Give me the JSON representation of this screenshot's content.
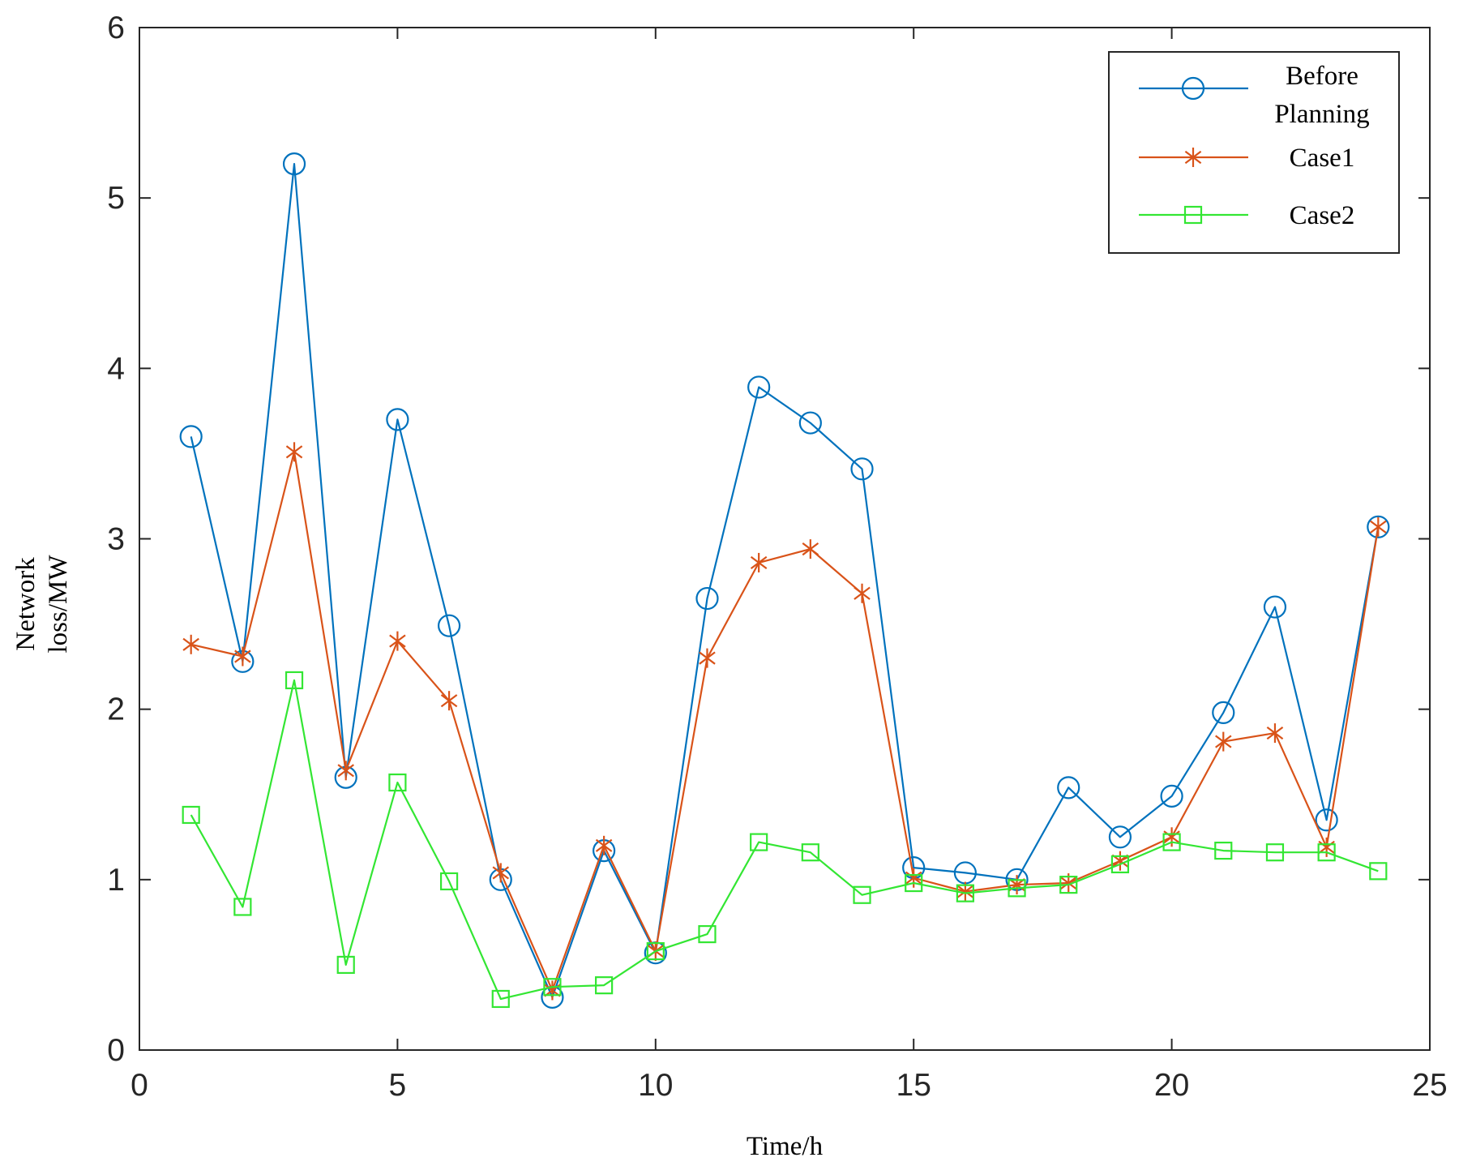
{
  "chart_data": {
    "type": "line",
    "title": "",
    "xlabel": "Time/h",
    "ylabel_lines": [
      "Network",
      "loss/MW"
    ],
    "xlim": [
      0,
      25
    ],
    "ylim": [
      0,
      6
    ],
    "xticks": [
      0,
      5,
      10,
      15,
      20,
      25
    ],
    "yticks": [
      0,
      1,
      2,
      3,
      4,
      5,
      6
    ],
    "grid": false,
    "legend_position": "top-right",
    "x": [
      1,
      2,
      3,
      4,
      5,
      6,
      7,
      8,
      9,
      10,
      11,
      12,
      13,
      14,
      15,
      16,
      17,
      18,
      19,
      20,
      21,
      22,
      23,
      24
    ],
    "series": [
      {
        "name": "Before Planning",
        "legend_lines": [
          "Before",
          "Planning"
        ],
        "color": "#0072BD",
        "marker": "circle",
        "values": [
          3.6,
          2.28,
          5.2,
          1.6,
          3.7,
          2.49,
          1.0,
          0.31,
          1.17,
          0.57,
          2.65,
          3.89,
          3.68,
          3.41,
          1.07,
          1.04,
          1.0,
          1.54,
          1.25,
          1.49,
          1.98,
          2.6,
          1.35,
          3.07
        ]
      },
      {
        "name": "Case1",
        "legend_lines": [
          "Case1"
        ],
        "color": "#D95319",
        "marker": "asterisk",
        "values": [
          2.38,
          2.31,
          3.51,
          1.64,
          2.4,
          2.05,
          1.04,
          0.35,
          1.2,
          0.58,
          2.3,
          2.86,
          2.94,
          2.68,
          1.01,
          0.93,
          0.97,
          0.98,
          1.11,
          1.25,
          1.81,
          1.86,
          1.19,
          3.07
        ]
      },
      {
        "name": "Case2",
        "legend_lines": [
          "Case2"
        ],
        "color": "#33E633",
        "marker": "square",
        "values": [
          1.38,
          0.84,
          2.17,
          0.5,
          1.57,
          0.99,
          0.3,
          0.37,
          0.38,
          0.58,
          0.68,
          1.22,
          1.16,
          0.91,
          0.98,
          0.92,
          0.95,
          0.97,
          1.09,
          1.22,
          1.17,
          1.16,
          1.16,
          1.05
        ]
      }
    ]
  }
}
